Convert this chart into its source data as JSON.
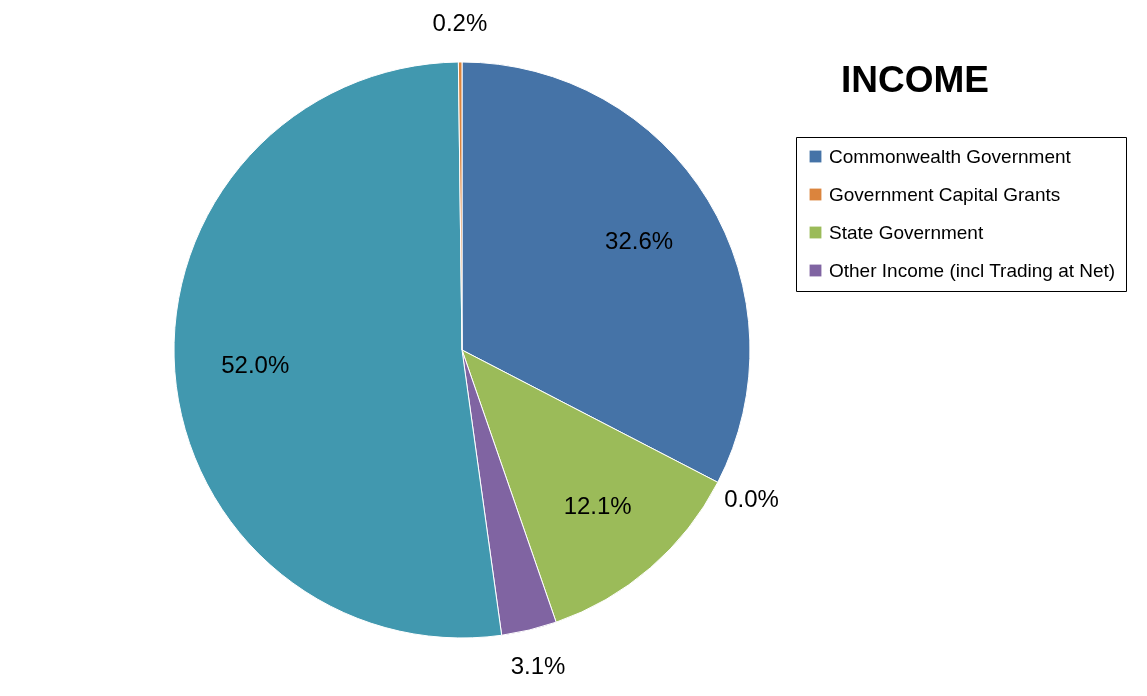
{
  "chart_data": {
    "type": "pie",
    "title": "INCOME",
    "categories": [
      "Commonwealth Government",
      "Government Capital Grants",
      "State Government",
      "Other Income (incl Trading at Net)",
      null,
      null
    ],
    "values": [
      32.6,
      0.0,
      12.1,
      3.1,
      52.0,
      0.2
    ],
    "colors": [
      "#4573a7",
      "#db843d",
      "#9bbb59",
      "#8064a2",
      "#4198af",
      "#db843d"
    ],
    "value_labels": [
      "32.6%",
      "0.0%",
      "12.1%",
      "3.1%",
      "52.0%",
      "0.2%"
    ],
    "legend": "right"
  }
}
